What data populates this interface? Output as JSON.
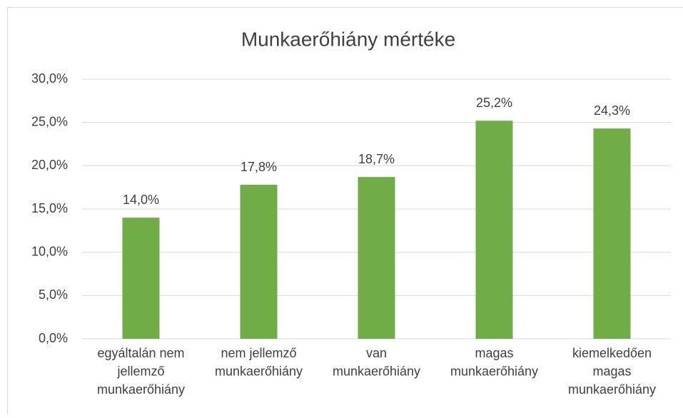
{
  "chart_data": {
    "type": "bar",
    "title": "Munkaerőhiány mértéke",
    "categories": [
      "egyáltalán nem\njellemző\nmunkaerőhiány",
      "nem jellemző\nmunkaerőhiány",
      "van\nmunkaerőhiány",
      "magas\nmunkaerőhiány",
      "kiemelkedően\nmagas\nmunkaerőhiány"
    ],
    "values": [
      14.0,
      17.8,
      18.7,
      25.2,
      24.3
    ],
    "value_labels": [
      "14,0%",
      "17,8%",
      "18,7%",
      "25,2%",
      "24,3%"
    ],
    "color": "#70ad47",
    "ylim": [
      0,
      30
    ],
    "yticks": [
      {
        "value": 0,
        "label": "0,0%"
      },
      {
        "value": 5,
        "label": "5,0%"
      },
      {
        "value": 10,
        "label": "10,0%"
      },
      {
        "value": 15,
        "label": "15,0%"
      },
      {
        "value": 20,
        "label": "20,0%"
      },
      {
        "value": 25,
        "label": "25,0%"
      },
      {
        "value": 30,
        "label": "30,0%"
      }
    ],
    "grid": true
  }
}
